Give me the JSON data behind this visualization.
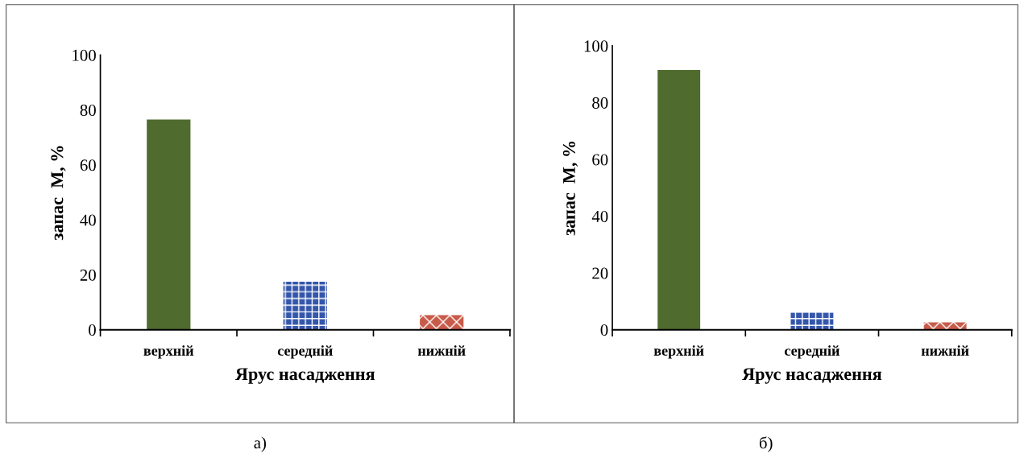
{
  "chart_data": [
    {
      "type": "bar",
      "xlabel": "Ярус насадження",
      "ylabel": "запас  М, %",
      "categories": [
        "верхній",
        "середній",
        "нижній"
      ],
      "values": [
        76.5,
        17.5,
        5.3
      ],
      "colors": [
        "#4f6b2e",
        "#3355aa",
        "#c85a4a"
      ],
      "ylim": [
        0,
        100
      ],
      "yticks": [
        0,
        20,
        40,
        60,
        80,
        100
      ],
      "grid": false,
      "annotations": [
        "а)"
      ]
    },
    {
      "type": "bar",
      "xlabel": "Ярус насадження",
      "ylabel": "запас  М, %",
      "categories": [
        "верхній",
        "середній",
        "нижній"
      ],
      "values": [
        91.5,
        6.0,
        2.6
      ],
      "colors": [
        "#4f6b2e",
        "#3355aa",
        "#c85a4a"
      ],
      "ylim": [
        0,
        100
      ],
      "yticks": [
        0,
        20,
        40,
        60,
        80,
        100
      ],
      "grid": false,
      "annotations": [
        "б)"
      ]
    }
  ]
}
